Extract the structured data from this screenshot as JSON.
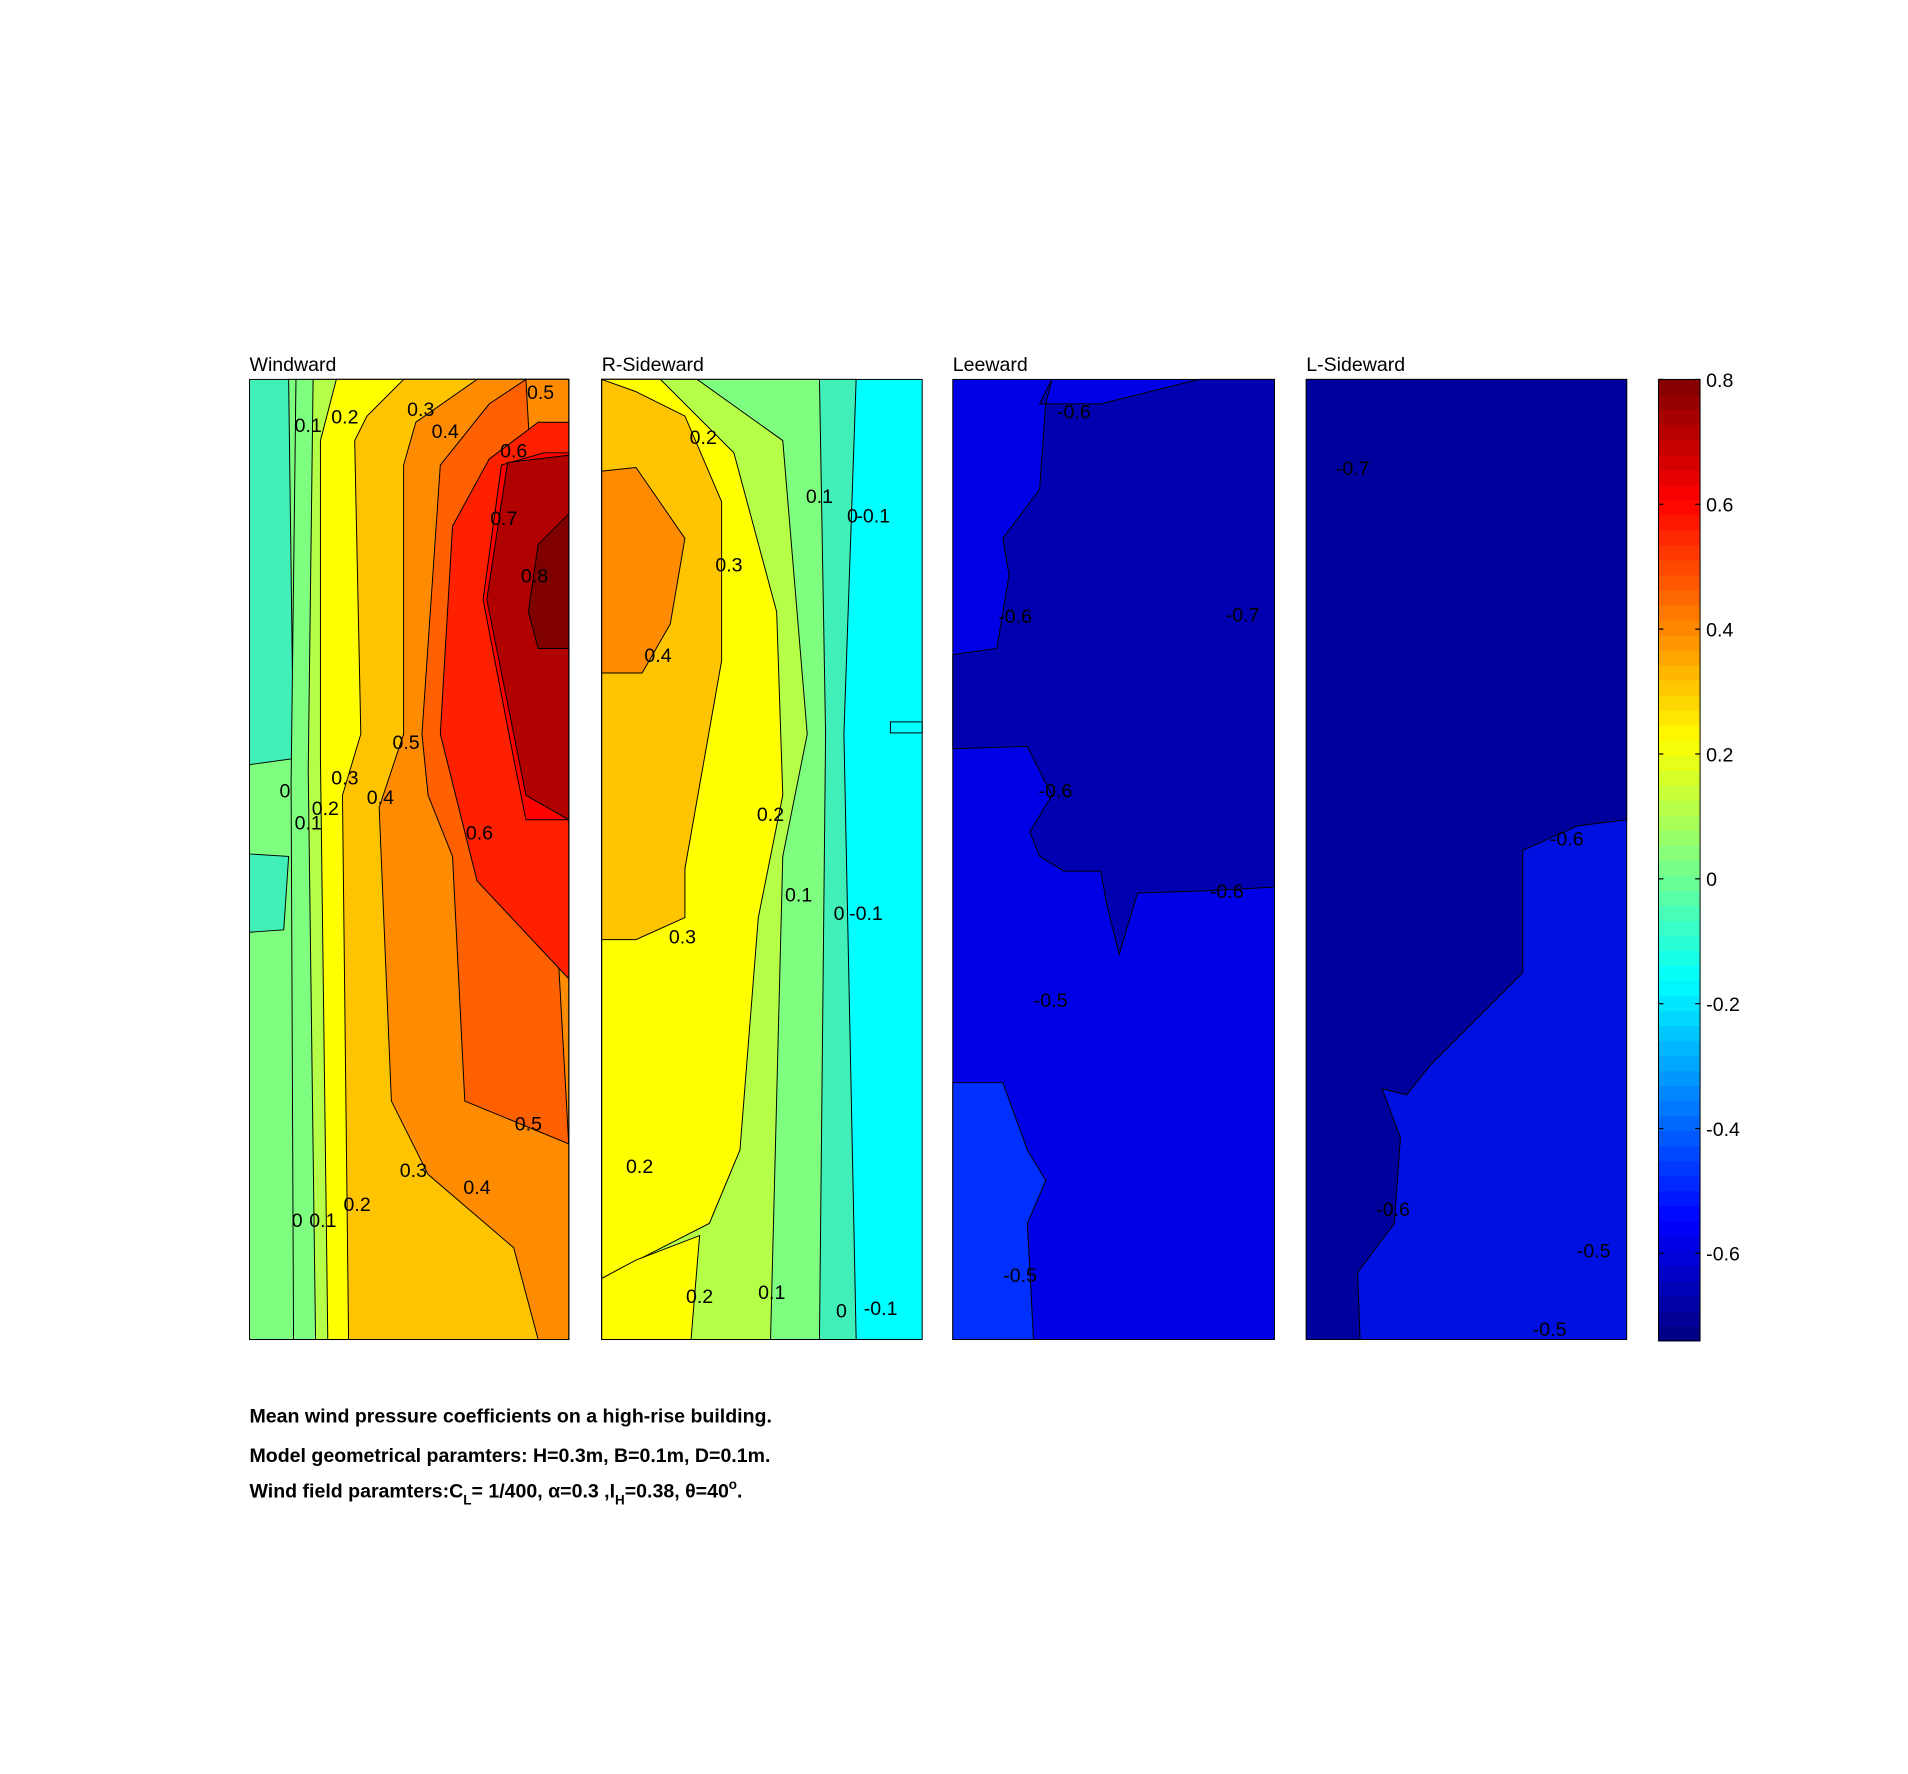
{
  "chart_data": {
    "type": "contour",
    "panels": [
      {
        "title": "Windward",
        "contour_labels": [
          0.1,
          0.2,
          0.3,
          0.4,
          0.5,
          0.6,
          0.7,
          0.8,
          0.5,
          0,
          0.3,
          0.1,
          0.2,
          0.4,
          0.6,
          0.5,
          0.3,
          0.4,
          0,
          0.1,
          0.2
        ]
      },
      {
        "title": "R-Sideward",
        "contour_labels": [
          0.2,
          0.1,
          0,
          -0.1,
          0.3,
          0.4,
          0.2,
          0.1,
          0,
          -0.1,
          0.3,
          0.2,
          0.2,
          0.1,
          0,
          -0.1
        ]
      },
      {
        "title": "Leeward",
        "contour_labels": [
          -0.6,
          -0.6,
          -0.7,
          -0.6,
          -0.6,
          -0.5,
          -0.5
        ]
      },
      {
        "title": "L-Sideward",
        "contour_labels": [
          -0.7,
          -0.6,
          -0.6,
          -0.5,
          -0.5
        ]
      }
    ],
    "colorbar": {
      "ylim": [
        -0.74,
        0.8
      ],
      "yticks": [
        0.8,
        0.6,
        0.4,
        0.2,
        0,
        -0.2,
        -0.4,
        -0.6
      ]
    },
    "caption": {
      "line1": "Mean wind pressure coefficients on a high-rise building.",
      "line2": "Model geometrical paramters: H=0.3m, B=0.1m, D=0.1m.",
      "line3": [
        "Wind field paramters:C",
        "L",
        "= 1/400, α=0.3 ,I",
        "H",
        "=0.38, θ=40",
        "o",
        "."
      ]
    }
  }
}
